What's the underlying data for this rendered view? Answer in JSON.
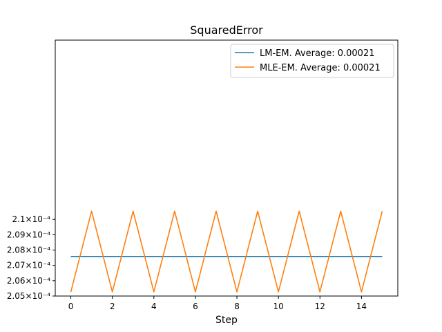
{
  "chart_data": {
    "type": "line",
    "title": "SquaredError",
    "xlabel": "Step",
    "ylabel": "",
    "xlim": [
      -0.75,
      15.75
    ],
    "ylim": [
      0.000205,
      0.0002217
    ],
    "x_ticks": [
      0,
      2,
      4,
      6,
      8,
      10,
      12,
      14
    ],
    "x_tick_labels": [
      "0",
      "2",
      "4",
      "6",
      "8",
      "10",
      "12",
      "14"
    ],
    "y_ticks": [
      0.000205,
      0.000206,
      0.000207,
      0.000208,
      0.000209,
      0.00021
    ],
    "y_tick_labels": [
      "2.05×10⁻⁴",
      "2.06×10⁻⁴",
      "2.07×10⁻⁴",
      "2.08×10⁻⁴",
      "2.09×10⁻⁴",
      "2.1×10⁻⁴"
    ],
    "grid": false,
    "legend_position": "top-right",
    "x": [
      0,
      1,
      2,
      3,
      4,
      5,
      6,
      7,
      8,
      9,
      10,
      11,
      12,
      13,
      14,
      15
    ],
    "series": [
      {
        "name": "LM-EM. Average: 0.00021",
        "color": "#1f77b4",
        "values": [
          0.00020758,
          0.00020758,
          0.00020758,
          0.00020758,
          0.00020758,
          0.00020758,
          0.00020758,
          0.00020758,
          0.00020758,
          0.00020758,
          0.00020758,
          0.00020758,
          0.00020758,
          0.00020758,
          0.00020758,
          0.00020758
        ]
      },
      {
        "name": "MLE-EM. Average: 0.00021",
        "color": "#ff7f0e",
        "values": [
          0.00020527,
          0.00021054,
          0.00020527,
          0.00021054,
          0.00020527,
          0.00021054,
          0.00020527,
          0.00021054,
          0.00020527,
          0.00021054,
          0.00020527,
          0.00021054,
          0.00020527,
          0.00021054,
          0.00020527,
          0.00021054
        ]
      }
    ]
  }
}
